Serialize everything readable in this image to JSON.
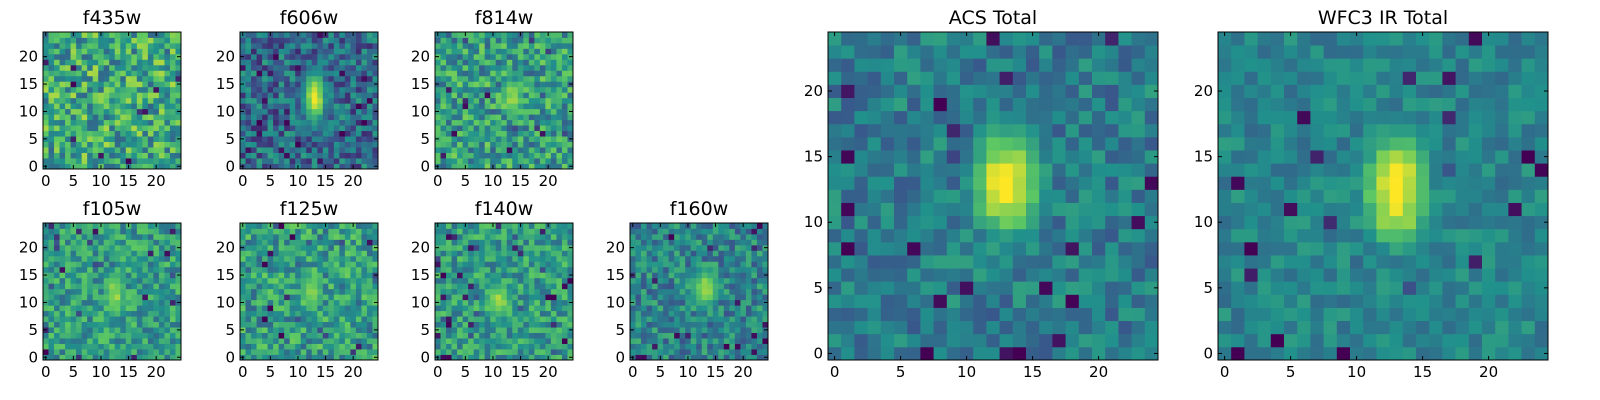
{
  "chart_data": {
    "type": "heatmap",
    "colormap": "viridis",
    "colormap_stops": [
      "#440154",
      "#3b528b",
      "#21918c",
      "#5ec962",
      "#fde725"
    ],
    "grid_size": 25,
    "panels": [
      {
        "title": "f435w",
        "xticks": [
          "0",
          "5",
          "10",
          "15",
          "20"
        ],
        "yticks": [
          "0",
          "5",
          "10",
          "15",
          "20"
        ],
        "blob": {
          "x": [
            13,
            16
          ],
          "y": [
            11,
            15
          ],
          "peak": 0.75
        },
        "noise": 0.55,
        "base": 0.6,
        "seed": 11
      },
      {
        "title": "f606w",
        "xticks": [
          "0",
          "5",
          "10",
          "15",
          "20"
        ],
        "yticks": [
          "0",
          "5",
          "10",
          "15",
          "20"
        ],
        "blob": {
          "x": [
            12,
            14
          ],
          "y": [
            8,
            17
          ],
          "peak": 0.95
        },
        "noise": 0.45,
        "base": 0.35,
        "seed": 23
      },
      {
        "title": "f814w",
        "xticks": [
          "0",
          "5",
          "10",
          "15",
          "20"
        ],
        "yticks": [
          "0",
          "5",
          "10",
          "15",
          "20"
        ],
        "blob": {
          "x": [
            12,
            15
          ],
          "y": [
            9,
            16
          ],
          "peak": 0.85
        },
        "noise": 0.5,
        "base": 0.55,
        "seed": 37
      },
      {
        "title": "f105w",
        "xticks": [
          "0",
          "5",
          "10",
          "15",
          "20"
        ],
        "yticks": [
          "0",
          "5",
          "10",
          "15",
          "20"
        ],
        "blob": {
          "x": [
            11,
            14
          ],
          "y": [
            7,
            16
          ],
          "peak": 0.85
        },
        "noise": 0.4,
        "base": 0.55,
        "seed": 41
      },
      {
        "title": "f125w",
        "xticks": [
          "0",
          "5",
          "10",
          "15",
          "20"
        ],
        "yticks": [
          "0",
          "5",
          "10",
          "15",
          "20"
        ],
        "blob": {
          "x": [
            11,
            14
          ],
          "y": [
            8,
            16
          ],
          "peak": 0.85
        },
        "noise": 0.45,
        "base": 0.55,
        "seed": 53
      },
      {
        "title": "f140w",
        "xticks": [
          "0",
          "5",
          "10",
          "15",
          "20"
        ],
        "yticks": [
          "0",
          "5",
          "10",
          "15",
          "20"
        ],
        "blob": {
          "x": [
            9,
            13
          ],
          "y": [
            7,
            14
          ],
          "peak": 0.85
        },
        "noise": 0.4,
        "base": 0.55,
        "seed": 67
      },
      {
        "title": "f160w",
        "xticks": [
          "0",
          "5",
          "10",
          "15",
          "20"
        ],
        "yticks": [
          "0",
          "5",
          "10",
          "15",
          "20"
        ],
        "blob": {
          "x": [
            11,
            15
          ],
          "y": [
            9,
            16
          ],
          "peak": 0.85
        },
        "noise": 0.4,
        "base": 0.45,
        "seed": 79
      },
      {
        "title": "ACS Total",
        "xticks": [
          "0",
          "5",
          "10",
          "15",
          "20"
        ],
        "yticks": [
          "0",
          "5",
          "10",
          "15",
          "20"
        ],
        "blob": {
          "x": [
            11,
            15
          ],
          "y": [
            9,
            17
          ],
          "peak": 1.0
        },
        "noise": 0.3,
        "base": 0.42,
        "seed": 83
      },
      {
        "title": "WFC3 IR Total",
        "xticks": [
          "0",
          "5",
          "10",
          "15",
          "20"
        ],
        "yticks": [
          "0",
          "5",
          "10",
          "15",
          "20"
        ],
        "blob": {
          "x": [
            11,
            15
          ],
          "y": [
            8,
            17
          ],
          "peak": 1.0
        },
        "noise": 0.22,
        "base": 0.45,
        "seed": 97
      }
    ]
  }
}
